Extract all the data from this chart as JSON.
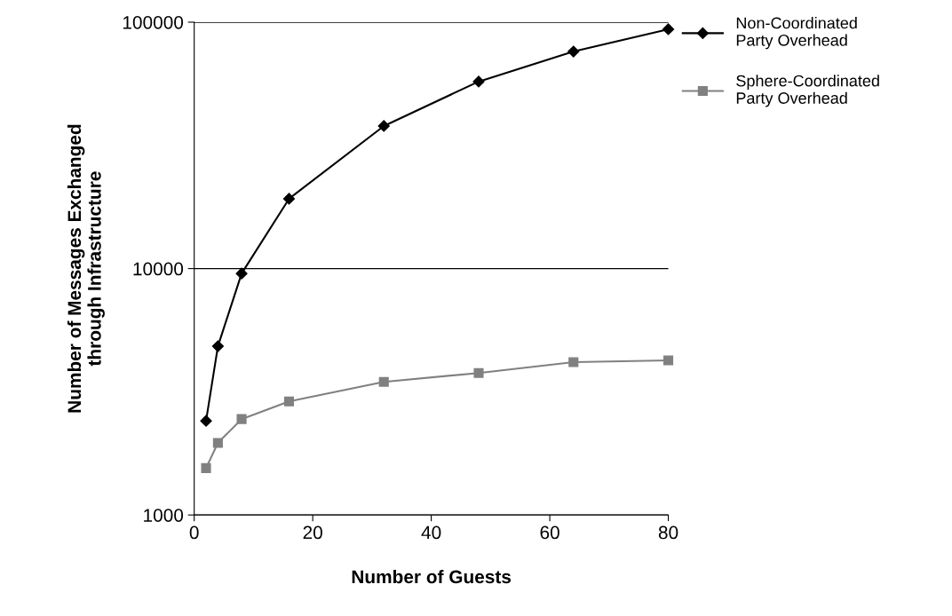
{
  "chart_data": {
    "type": "line",
    "xlabel": "Number of Guests",
    "ylabel": "Number of Messages Exchanged\nthrough Infrastructure",
    "x": [
      2,
      4,
      8,
      16,
      32,
      48,
      64,
      80
    ],
    "series": [
      {
        "name": "Non-Coordinated\nParty Overhead",
        "color": "#000000",
        "marker": "diamond",
        "values": [
          2410,
          4840,
          9550,
          19200,
          37900,
          57400,
          76000,
          93600
        ]
      },
      {
        "name": "Sphere-Coordinated\nParty Overhead",
        "color": "#808080",
        "marker": "square",
        "values": [
          1550,
          1960,
          2450,
          2890,
          3470,
          3770,
          4170,
          4240
        ]
      }
    ],
    "log": "y",
    "xlim": [
      0,
      80
    ],
    "xticks": [
      0,
      20,
      40,
      60,
      80
    ],
    "ylim": [
      1000,
      100000
    ],
    "yticks": [
      1000,
      10000,
      100000
    ],
    "grid": "y",
    "legend": "top right",
    "line_style": "solid"
  }
}
